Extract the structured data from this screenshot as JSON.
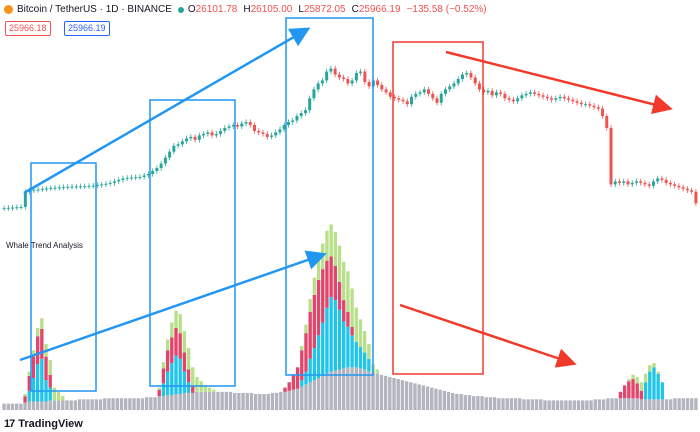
{
  "header": {
    "symbol": "Bitcoin / TetherUS · 1D · BINANCE",
    "open_label": "O",
    "open": "26101.78",
    "high_label": "H",
    "high": "26105.00",
    "low_label": "L",
    "low": "25872.05",
    "close_label": "C",
    "close": "25966.19",
    "change": "−135.58 (−0.52%)",
    "price_badge_1": "25966.18",
    "price_badge_2": "25966.19"
  },
  "indicator": {
    "title": "Whale Trend Analysis"
  },
  "footer": {
    "brand": "TradingView"
  },
  "colors": {
    "up": "#26a69a",
    "down": "#ef5350",
    "blue_annot": "#2196f3",
    "red_annot": "#f23a2b",
    "vol_gray": "#b2b5be",
    "vol_cyan": "#22c4e8",
    "vol_red": "#e0456b",
    "vol_green": "#b8e08a"
  },
  "chart_data": [
    {
      "type": "candlestick",
      "title": "",
      "xlabel": "",
      "ylabel": "",
      "note": "daily candles approximated as close-price path",
      "close": [
        25800,
        25810,
        25820,
        25830,
        25840,
        26350,
        26400,
        26420,
        26430,
        26450,
        26460,
        26480,
        26490,
        26500,
        26510,
        26520,
        26525,
        26530,
        26535,
        26540,
        26550,
        26560,
        26580,
        26600,
        26620,
        26650,
        26700,
        26750,
        26800,
        26820,
        26830,
        26840,
        26850,
        26900,
        26950,
        27050,
        27150,
        27300,
        27500,
        27700,
        27900,
        27950,
        28050,
        28150,
        28200,
        28100,
        28250,
        28300,
        28350,
        28250,
        28300,
        28400,
        28500,
        28550,
        28600,
        28550,
        28650,
        28700,
        28600,
        28400,
        28350,
        28300,
        28200,
        28250,
        28350,
        28450,
        28600,
        28700,
        28750,
        28900,
        29000,
        29100,
        29500,
        29800,
        30000,
        30100,
        30400,
        30500,
        30300,
        30200,
        30150,
        30000,
        30100,
        30350,
        30400,
        30050,
        29900,
        30100,
        29950,
        29800,
        29700,
        29550,
        29500,
        29450,
        29400,
        29300,
        29550,
        29650,
        29700,
        29800,
        29650,
        29500,
        29350,
        29650,
        29800,
        29900,
        30000,
        30150,
        30300,
        30350,
        30200,
        30000,
        29800,
        29700,
        29750,
        29600,
        29700,
        29650,
        29500,
        29450,
        29400,
        29500,
        29600,
        29650,
        29700,
        29650,
        29600,
        29550,
        29500,
        29450,
        29500,
        29550,
        29500,
        29450,
        29400,
        29350,
        29300,
        29300,
        29250,
        29200,
        29150,
        28900,
        28500,
        26600,
        26700,
        26650,
        26700,
        26600,
        26650,
        26700,
        26650,
        26600,
        26550,
        26700,
        26800,
        26750,
        26650,
        26600,
        26550,
        26500,
        26450,
        26400,
        26350,
        25966
      ],
      "y_range": [
        25400,
        31800
      ]
    },
    {
      "type": "bar",
      "title": "Whale Trend Analysis",
      "series": [
        {
          "name": "",
          "color": "#b2b5be",
          "values": [
            6,
            6,
            6,
            6,
            6,
            7,
            8,
            8,
            8,
            8,
            8,
            9,
            9,
            9,
            9,
            9,
            9,
            9,
            10,
            10,
            10,
            10,
            10,
            10,
            11,
            11,
            11,
            11,
            11,
            11,
            11,
            11,
            11,
            11,
            12,
            12,
            12,
            13,
            13,
            14,
            14,
            15,
            15,
            16,
            16,
            16,
            17,
            17,
            17,
            17,
            17,
            17,
            17,
            17,
            17,
            16,
            16,
            16,
            16,
            16,
            15,
            15,
            15,
            15,
            16,
            16,
            17,
            17,
            18,
            19,
            20,
            22,
            24,
            26,
            28,
            30,
            32,
            34,
            36,
            37,
            38,
            39,
            40,
            40,
            40,
            39,
            38,
            36,
            35,
            34,
            33,
            32,
            31,
            30,
            29,
            28,
            27,
            26,
            25,
            24,
            23,
            22,
            21,
            20,
            19,
            18,
            17,
            16,
            15,
            15,
            14,
            14,
            13,
            13,
            13,
            12,
            12,
            12,
            11,
            11,
            11,
            11,
            11,
            11,
            10,
            10,
            10,
            10,
            10,
            9,
            9,
            9,
            9,
            9,
            9,
            9,
            9,
            9,
            9,
            9,
            9,
            10,
            10,
            10,
            11,
            11,
            11,
            11,
            11,
            11,
            11,
            11,
            10,
            10,
            10,
            10,
            10,
            10,
            10,
            10,
            11,
            11,
            11,
            11,
            11,
            11
          ]
        },
        {
          "name": "",
          "color": "#22c4e8",
          "values": [
            0,
            0,
            0,
            0,
            0,
            0,
            10,
            22,
            35,
            40,
            20,
            12,
            0,
            0,
            0,
            0,
            0,
            0,
            0,
            0,
            0,
            0,
            0,
            0,
            0,
            0,
            0,
            0,
            0,
            0,
            0,
            0,
            0,
            0,
            0,
            0,
            0,
            0,
            12,
            22,
            30,
            36,
            33,
            20,
            10,
            0,
            0,
            0,
            0,
            0,
            0,
            0,
            0,
            0,
            0,
            0,
            0,
            0,
            0,
            0,
            0,
            0,
            0,
            0,
            0,
            0,
            0,
            0,
            0,
            0,
            0,
            6,
            12,
            22,
            30,
            40,
            50,
            62,
            70,
            66,
            56,
            44,
            38,
            30,
            24,
            20,
            16,
            12,
            0,
            0,
            0,
            0,
            0,
            0,
            0,
            0,
            0,
            0,
            0,
            0,
            0,
            0,
            0,
            0,
            0,
            0,
            0,
            0,
            0,
            0,
            0,
            0,
            0,
            0,
            0,
            0,
            0,
            0,
            0,
            0,
            0,
            0,
            0,
            0,
            0,
            0,
            0,
            0,
            0,
            0,
            0,
            0,
            0,
            0,
            0,
            0,
            0,
            0,
            0,
            0,
            0,
            0,
            0,
            0,
            0,
            0,
            0,
            0,
            0,
            0,
            0,
            0,
            0,
            16,
            26,
            30,
            24,
            16,
            0,
            0,
            0,
            0,
            0,
            0,
            0,
            0,
            0,
            0,
            0,
            0,
            0,
            0
          ]
        },
        {
          "name": "",
          "color": "#e0456b",
          "values": [
            0,
            0,
            0,
            0,
            0,
            6,
            14,
            20,
            26,
            28,
            22,
            12,
            0,
            0,
            0,
            0,
            0,
            0,
            0,
            0,
            0,
            0,
            0,
            0,
            0,
            0,
            0,
            0,
            0,
            0,
            0,
            0,
            0,
            0,
            0,
            0,
            0,
            6,
            14,
            20,
            24,
            26,
            24,
            18,
            12,
            6,
            0,
            0,
            0,
            0,
            0,
            0,
            0,
            0,
            0,
            0,
            0,
            0,
            0,
            0,
            0,
            0,
            0,
            0,
            0,
            0,
            0,
            4,
            8,
            14,
            20,
            28,
            36,
            44,
            50,
            52,
            50,
            44,
            38,
            32,
            26,
            20,
            14,
            8,
            0,
            0,
            0,
            0,
            0,
            0,
            0,
            0,
            0,
            0,
            0,
            0,
            0,
            0,
            0,
            0,
            0,
            0,
            0,
            0,
            0,
            0,
            0,
            0,
            0,
            0,
            0,
            0,
            0,
            0,
            0,
            0,
            0,
            0,
            0,
            0,
            0,
            0,
            0,
            0,
            0,
            0,
            0,
            0,
            0,
            0,
            0,
            0,
            0,
            0,
            0,
            0,
            0,
            0,
            0,
            0,
            0,
            0,
            0,
            0,
            0,
            0,
            0,
            6,
            12,
            16,
            18,
            14,
            8,
            0,
            0,
            0,
            0,
            0,
            0,
            0,
            0,
            0,
            0,
            0,
            0,
            0,
            0
          ]
        },
        {
          "name": "",
          "color": "#b8e08a",
          "values": [
            0,
            0,
            0,
            0,
            0,
            2,
            4,
            6,
            8,
            10,
            12,
            14,
            12,
            8,
            4,
            0,
            0,
            0,
            0,
            0,
            0,
            0,
            0,
            0,
            0,
            0,
            0,
            0,
            0,
            0,
            0,
            0,
            0,
            0,
            0,
            0,
            0,
            2,
            6,
            10,
            14,
            16,
            18,
            20,
            20,
            18,
            14,
            10,
            6,
            4,
            2,
            0,
            0,
            0,
            0,
            0,
            0,
            0,
            0,
            0,
            0,
            0,
            0,
            0,
            0,
            0,
            0,
            0,
            0,
            0,
            0,
            4,
            8,
            12,
            16,
            20,
            24,
            28,
            30,
            32,
            34,
            36,
            38,
            36,
            32,
            26,
            20,
            14,
            8,
            4,
            0,
            0,
            0,
            0,
            0,
            0,
            0,
            0,
            0,
            0,
            0,
            0,
            0,
            0,
            0,
            0,
            0,
            0,
            0,
            0,
            0,
            0,
            0,
            0,
            0,
            0,
            0,
            0,
            0,
            0,
            0,
            0,
            0,
            0,
            0,
            0,
            0,
            0,
            0,
            0,
            0,
            0,
            0,
            0,
            0,
            0,
            0,
            0,
            0,
            0,
            0,
            0,
            0,
            0,
            0,
            0,
            0,
            0,
            0,
            2,
            4,
            6,
            8,
            8,
            6,
            4,
            2,
            0,
            0,
            0,
            0,
            0,
            0,
            0,
            0,
            0,
            0,
            0,
            0
          ]
        }
      ]
    }
  ]
}
